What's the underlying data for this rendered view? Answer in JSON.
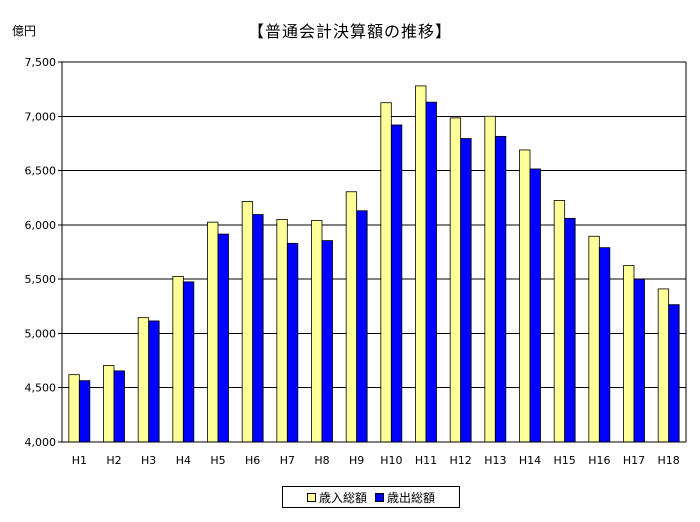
{
  "chart_data": {
    "type": "bar",
    "title": "【普通会計決算額の推移】",
    "ylabel": "億円",
    "ylim": [
      4000,
      7500
    ],
    "yticks": [
      4000,
      4500,
      5000,
      5500,
      6000,
      6500,
      7000,
      7500
    ],
    "ytick_labels": [
      "4,000",
      "4,500",
      "5,000",
      "5,500",
      "6,000",
      "6,500",
      "7,000",
      "7,500"
    ],
    "grid": true,
    "legend_position": "bottom",
    "categories": [
      "H1",
      "H2",
      "H3",
      "H4",
      "H5",
      "H6",
      "H7",
      "H8",
      "H9",
      "H10",
      "H11",
      "H12",
      "H13",
      "H14",
      "H15",
      "H16",
      "H17",
      "H18"
    ],
    "series": [
      {
        "name": "歳入総額",
        "color": "#ffff99",
        "values": [
          4620,
          4705,
          5145,
          5525,
          6025,
          6215,
          6050,
          6040,
          6305,
          7125,
          7280,
          6985,
          7000,
          6690,
          6225,
          5895,
          5625,
          5410
        ]
      },
      {
        "name": "歳出総額",
        "color": "#0000ff",
        "values": [
          4565,
          4655,
          5115,
          5475,
          5915,
          6095,
          5830,
          5855,
          6130,
          6920,
          7130,
          6795,
          6815,
          6515,
          6060,
          5790,
          5500,
          5265
        ]
      }
    ]
  }
}
